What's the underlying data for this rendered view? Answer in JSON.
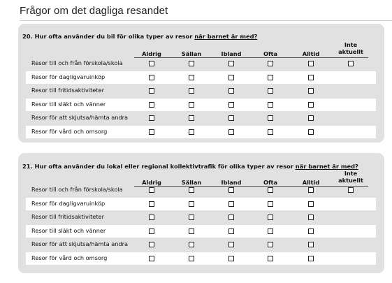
{
  "page_title": "Frågor om det dagliga resandet",
  "questions": [
    {
      "number": "20.",
      "text_prefix": "Hur ofta använder du bil för olika typer av resor ",
      "text_underlined": "när barnet är med?",
      "columns": [
        "Aldrig",
        "Sällan",
        "Ibland",
        "Ofta",
        "Alltid",
        "Inte aktuellt"
      ],
      "rows": [
        {
          "label": "Resor till och från förskola/skola",
          "has_not_applicable": true
        },
        {
          "label": "Resor för dagligvaruinköp",
          "has_not_applicable": false
        },
        {
          "label": "Resor till fritidsaktiviteter",
          "has_not_applicable": false
        },
        {
          "label": "Resor till släkt och vänner",
          "has_not_applicable": false
        },
        {
          "label": "Resor för att skjutsa/hämta andra",
          "has_not_applicable": false
        },
        {
          "label": "Resor för vård och omsorg",
          "has_not_applicable": false
        }
      ]
    },
    {
      "number": "21.",
      "text_prefix": "Hur ofta använder du lokal eller regional kollektivtrafik för olika typer av resor ",
      "text_underlined": "när barnet är med?",
      "columns": [
        "Aldrig",
        "Sällan",
        "Ibland",
        "Ofta",
        "Alltid",
        "Inte aktuellt"
      ],
      "rows": [
        {
          "label": "Resor till och från förskola/skola",
          "has_not_applicable": true
        },
        {
          "label": "Resor för dagligvaruinköp",
          "has_not_applicable": false
        },
        {
          "label": "Resor till fritidsaktiviteter",
          "has_not_applicable": false
        },
        {
          "label": "Resor till släkt och vänner",
          "has_not_applicable": false
        },
        {
          "label": "Resor för att skjutsa/hämta andra",
          "has_not_applicable": false
        },
        {
          "label": "Resor för vård och omsorg",
          "has_not_applicable": false
        }
      ]
    }
  ]
}
